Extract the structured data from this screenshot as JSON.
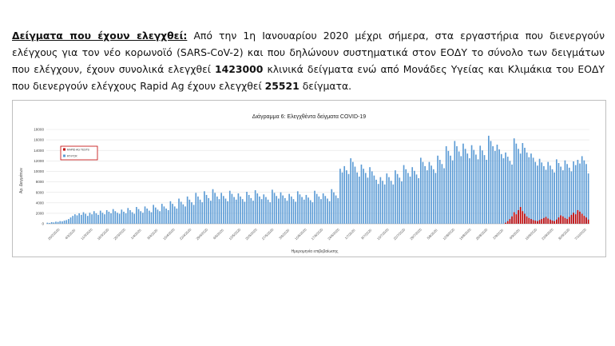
{
  "paragraph": {
    "heading": "Δείγματα που έχουν ελεγχθεί:",
    "text1": " Από την 1η Ιανουαρίου 2020 μέχρι σήμερα, στα εργαστήρια που διενεργούν ελέγχους για τον νέο κορωνοϊό (SARS-CoV-2) και που δηλώνουν συστηματικά στον ΕΟΔΥ το σύνολο των δειγμάτων που ελέγχουν, έχουν συνολικά ελεγχθεί ",
    "total_clinical": "1423000",
    "text2": " κλινικά δείγματα ενώ από Μονάδες Υγείας και Κλιμάκια του ΕΟΔΥ που διενεργούν ελέγχους Rapid Ag έχουν ελεγχθεί ",
    "total_rapid": "25521",
    "text3": " δείγματα."
  },
  "chart_data": {
    "type": "bar",
    "title": "Διάγραμμα 6: Ελεγχθέντα δείγματα COVID-19",
    "xlabel": "Ημερομηνία επιβεβαίωσης",
    "ylabel": "Αρ. Δειγμάτων",
    "ylim": [
      0,
      18000
    ],
    "yticks": [
      0,
      2000,
      4000,
      6000,
      8000,
      10000,
      12000,
      14000,
      16000,
      18000
    ],
    "grid": true,
    "legend_position": "top-left",
    "colors": {
      "pcr": "#5b9bd5",
      "rapid": "#c00000",
      "legend_border": "#c00000"
    },
    "series": [
      {
        "name": "RAPID AG TESTS",
        "color": "#c00000"
      },
      {
        "name": "RT-PCR",
        "color": "#5b9bd5"
      }
    ],
    "x_tick_labels": [
      "26/2/2020",
      "4/3/2020",
      "11/3/2020",
      "18/3/2020",
      "25/3/2020",
      "1/4/2020",
      "8/4/2020",
      "15/4/2020",
      "22/4/2020",
      "29/4/2020",
      "6/5/2020",
      "13/5/2020",
      "20/5/2020",
      "27/5/2020",
      "3/6/2020",
      "10/6/2020",
      "17/6/2020",
      "24/6/2020",
      "1/7/2020",
      "8/7/2020",
      "15/7/2020",
      "22/7/2020",
      "29/7/2020",
      "5/8/2020",
      "12/8/2020",
      "19/8/2020",
      "26/8/2020",
      "2/9/2020",
      "9/9/2020",
      "16/9/2020",
      "23/9/2020",
      "30/9/2020",
      "7/10/2020"
    ],
    "pcr_values": [
      200,
      150,
      300,
      250,
      400,
      350,
      500,
      450,
      600,
      700,
      900,
      1200,
      1500,
      1800,
      1600,
      2000,
      1700,
      2200,
      1900,
      1500,
      2100,
      1800,
      2400,
      2000,
      1700,
      2500,
      2100,
      1800,
      2600,
      2300,
      2000,
      2800,
      2400,
      2100,
      1900,
      2700,
      2300,
      2000,
      3000,
      2600,
      2200,
      1900,
      3200,
      2800,
      2400,
      2100,
      3300,
      2900,
      2500,
      2200,
      3600,
      3100,
      2700,
      2400,
      3800,
      3300,
      2900,
      2600,
      4300,
      3800,
      3300,
      2900,
      4800,
      4200,
      3700,
      3300,
      5200,
      4600,
      4100,
      3600,
      5900,
      5200,
      4600,
      4100,
      6200,
      5500,
      4900,
      4400,
      6600,
      5900,
      5200,
      4700,
      5900,
      5300,
      4800,
      4300,
      6300,
      5700,
      5100,
      4600,
      5800,
      5200,
      4700,
      4200,
      6100,
      5500,
      4900,
      4400,
      6400,
      5800,
      5200,
      4700,
      5600,
      5100,
      4600,
      4100,
      6500,
      5900,
      5300,
      4800,
      6000,
      5400,
      4900,
      4400,
      5700,
      5200,
      4700,
      4200,
      6200,
      5600,
      5100,
      4600,
      5500,
      5000,
      4500,
      4100,
      6300,
      5700,
      5200,
      4700,
      5800,
      5300,
      4800,
      4300,
      6600,
      6000,
      5400,
      4900,
      10500,
      9800,
      11000,
      10200,
      9500,
      12500,
      11800,
      10900,
      9800,
      9000,
      11300,
      10500,
      9700,
      8800,
      10800,
      10000,
      9200,
      8400,
      7600,
      8900,
      8200,
      7500,
      9600,
      8900,
      8200,
      7500,
      10200,
      9500,
      8800,
      8100,
      11200,
      10400,
      9700,
      9000,
      10800,
      10100,
      9400,
      8700,
      12600,
      11800,
      11000,
      10200,
      11800,
      11100,
      10400,
      9700,
      13000,
      12200,
      11400,
      10600,
      14800,
      13900,
      13000,
      12100,
      15800,
      14800,
      13800,
      12900,
      15300,
      14300,
      13400,
      12500,
      15000,
      14100,
      13200,
      12300,
      14900,
      14000,
      13100,
      12200,
      16800,
      15800,
      14800,
      13900,
      15100,
      14200,
      13300,
      12500,
      13600,
      12800,
      12000,
      11300,
      16300,
      15300,
      14300,
      13400,
      15400,
      14500,
      13600,
      12700,
      13400,
      12600,
      11800,
      11100,
      12400,
      11700,
      11000,
      10300,
      11800,
      11100,
      10400,
      9800,
      12300,
      11600,
      10900,
      10200,
      12100,
      11400,
      10700,
      10000,
      11900,
      11200,
      12200,
      11500,
      12900,
      12100,
      11400,
      9600
    ],
    "rapid_values_tail": [
      200,
      500,
      900,
      1400,
      2200,
      1800,
      2600,
      3200,
      2400,
      1900,
      1400,
      1100,
      900,
      700,
      600,
      500,
      700,
      900,
      1100,
      1300,
      1000,
      800,
      600,
      500,
      800,
      1200,
      1600,
      1400,
      1100,
      900,
      1300,
      1700,
      2100,
      1800,
      2600,
      2300,
      1900,
      1500,
      1200,
      800
    ]
  }
}
